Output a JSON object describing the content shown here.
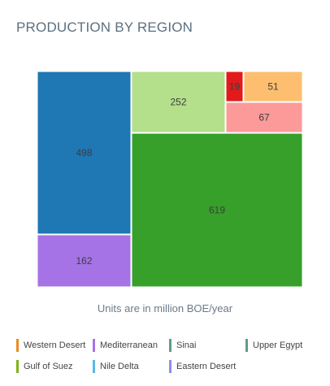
{
  "title": "PRODUCTION BY REGION",
  "note": "Units are in million BOE/year",
  "chart_data": {
    "type": "treemap",
    "title": "PRODUCTION BY REGION",
    "subtitle": "Units are in million BOE/year",
    "units": "million BOE/year",
    "items": [
      {
        "name": "Gulf of Suez",
        "value": 619,
        "label": "619",
        "color": "#36a02a"
      },
      {
        "name": "Nile Delta",
        "value": 498,
        "label": "498",
        "color": "#1f77b4"
      },
      {
        "name": "Western Desert",
        "value": 252,
        "label": "252",
        "color": "#b4df8b"
      },
      {
        "name": "Mediterranean",
        "value": 162,
        "label": "162",
        "color": "#a573e6"
      },
      {
        "name": "Sinai",
        "value": 67,
        "label": "67",
        "color": "#fb9a99"
      },
      {
        "name": "Upper Egypt",
        "value": 51,
        "label": "51",
        "color": "#fdbf6f"
      },
      {
        "name": "Eastern Desert",
        "value": 19,
        "label": "19",
        "color": "#e31a1c"
      }
    ],
    "legend": {
      "position": "bottom",
      "entries": [
        {
          "label": "Western Desert",
          "color": "#ed8a25"
        },
        {
          "label": "Mediterranean",
          "color": "#a573e6"
        },
        {
          "label": "Sinai",
          "color": "#5f9b8c"
        },
        {
          "label": "Upper Egypt",
          "color": "#5f9b8c"
        },
        {
          "label": "Gulf of Suez",
          "color": "#7cb518"
        },
        {
          "label": "Nile Delta",
          "color": "#5ab7e5"
        },
        {
          "label": "Eastern Desert",
          "color": "#8c8ef0"
        }
      ]
    }
  }
}
